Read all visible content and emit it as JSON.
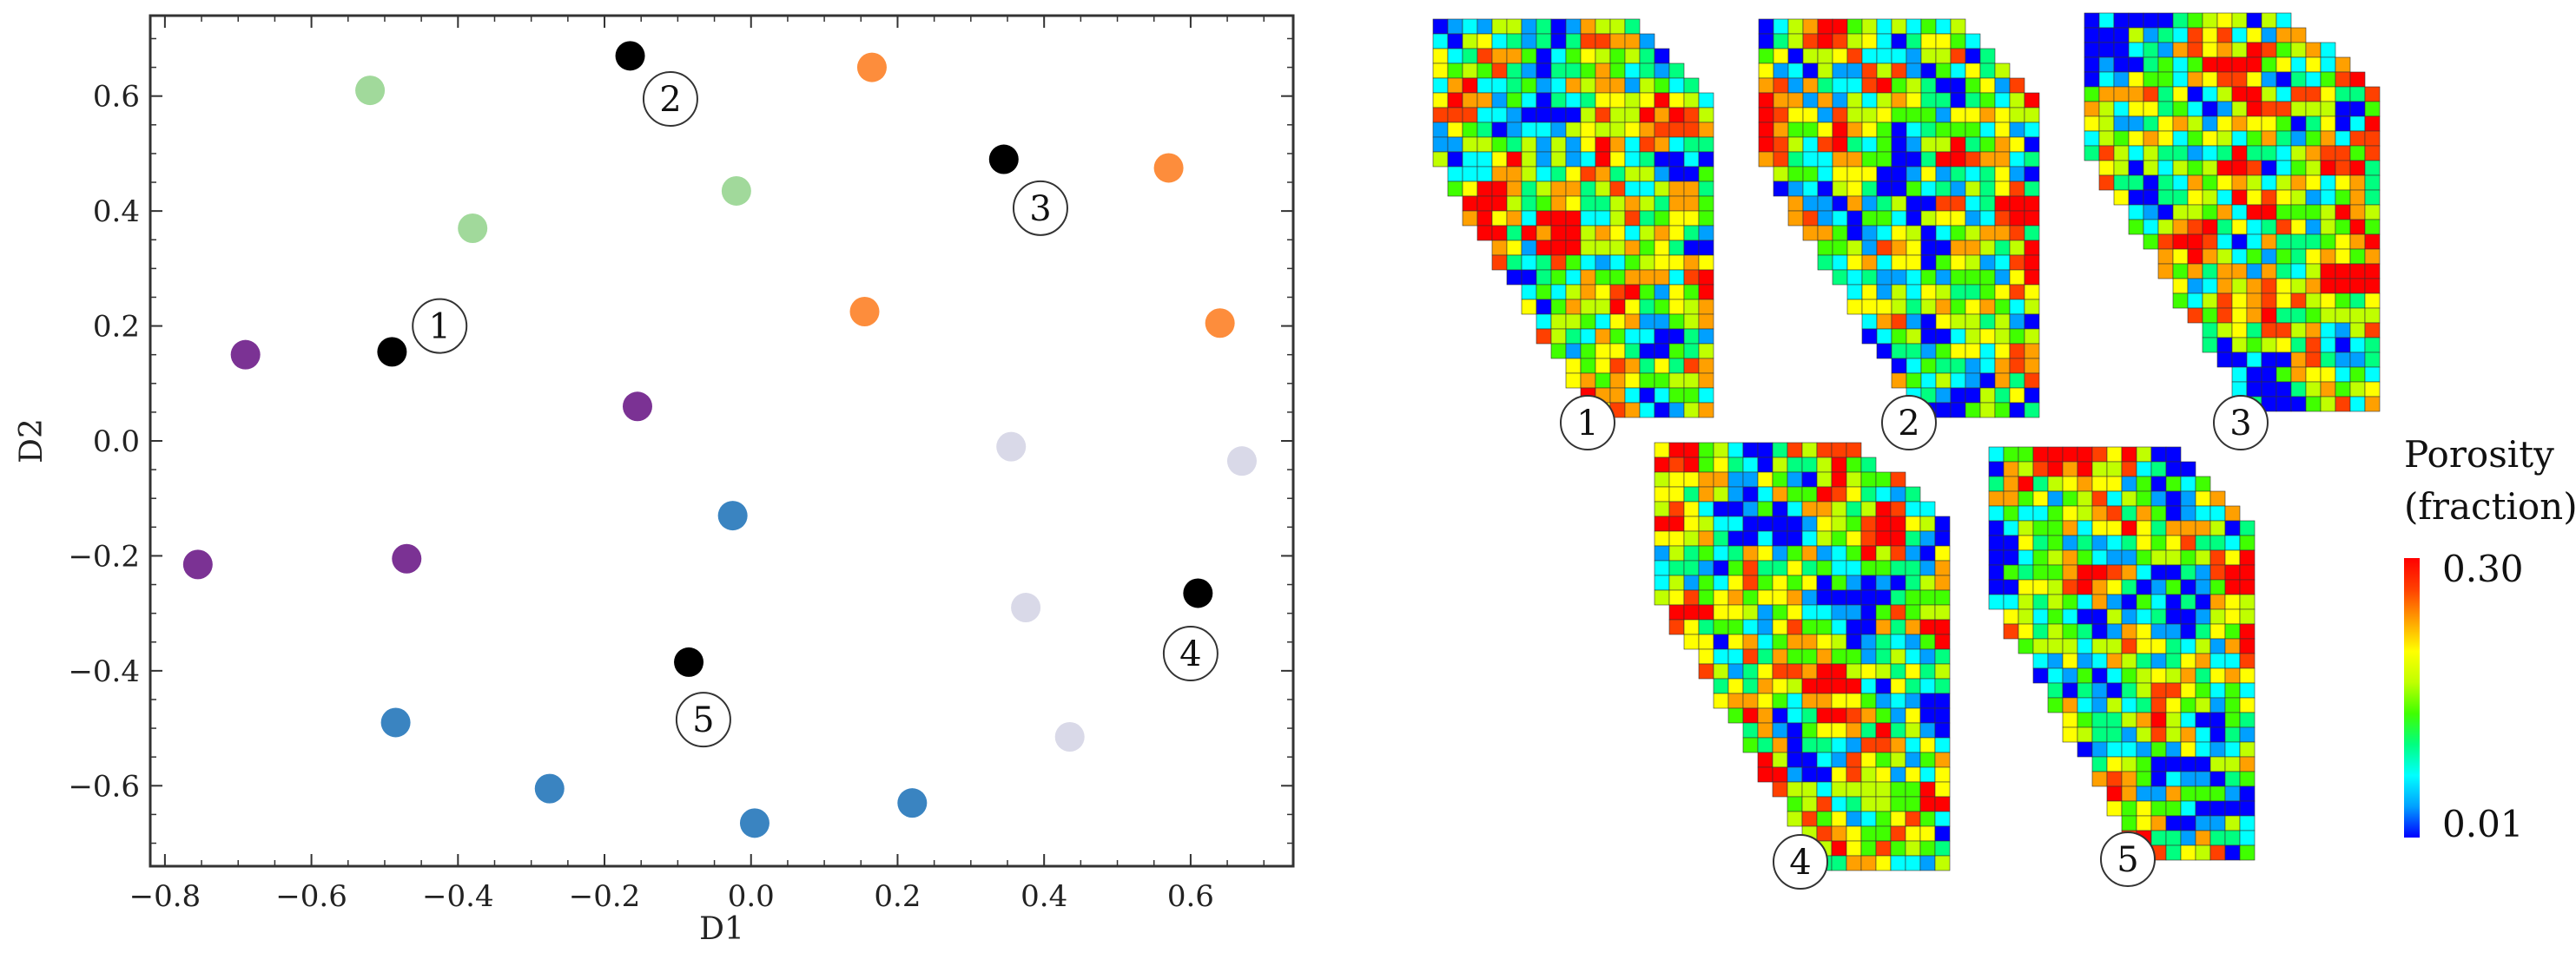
{
  "chart_data": [
    {
      "type": "scatter",
      "xlabel": "D1",
      "ylabel": "D2",
      "xlim": [
        -0.82,
        0.74
      ],
      "ylim": [
        -0.74,
        0.74
      ],
      "xticks": [
        "−0.8",
        "−0.6",
        "−0.4",
        "−0.2",
        "0.0",
        "0.2",
        "0.4",
        "0.6"
      ],
      "xtick_values": [
        -0.8,
        -0.6,
        -0.4,
        -0.2,
        0.0,
        0.2,
        0.4,
        0.6
      ],
      "yticks": [
        "−0.6",
        "−0.4",
        "−0.2",
        "0.0",
        "0.2",
        "0.4",
        "0.6"
      ],
      "ytick_values": [
        -0.6,
        -0.4,
        -0.2,
        0.0,
        0.2,
        0.4,
        0.6
      ],
      "grid": false,
      "series": [
        {
          "color": "#a1d99b",
          "points": [
            [
              -0.52,
              0.61
            ],
            [
              -0.38,
              0.37
            ],
            [
              -0.02,
              0.435
            ]
          ]
        },
        {
          "color": "#fd8d3c",
          "points": [
            [
              0.165,
              0.65
            ],
            [
              0.155,
              0.225
            ],
            [
              0.57,
              0.475
            ],
            [
              0.64,
              0.205
            ]
          ]
        },
        {
          "color": "#7b3294",
          "points": [
            [
              -0.69,
              0.15
            ],
            [
              -0.155,
              0.06
            ],
            [
              -0.755,
              -0.215
            ],
            [
              -0.47,
              -0.205
            ]
          ]
        },
        {
          "color": "#d9d9e8",
          "points": [
            [
              0.355,
              -0.01
            ],
            [
              0.67,
              -0.035
            ],
            [
              0.375,
              -0.29
            ],
            [
              0.435,
              -0.515
            ]
          ]
        },
        {
          "color": "#3a84c1",
          "points": [
            [
              -0.025,
              -0.13
            ],
            [
              -0.485,
              -0.49
            ],
            [
              -0.275,
              -0.605
            ],
            [
              0.005,
              -0.665
            ],
            [
              0.22,
              -0.63
            ]
          ]
        },
        {
          "color": "#000000",
          "points": [
            [
              -0.49,
              0.155
            ],
            [
              -0.165,
              0.67
            ],
            [
              0.345,
              0.49
            ],
            [
              0.61,
              -0.265
            ],
            [
              -0.085,
              -0.385
            ]
          ]
        }
      ],
      "annotations": [
        {
          "text": "1",
          "x": -0.425,
          "y": 0.2
        },
        {
          "text": "2",
          "x": -0.11,
          "y": 0.595
        },
        {
          "text": "3",
          "x": 0.395,
          "y": 0.405
        },
        {
          "text": "4",
          "x": 0.6,
          "y": -0.37
        },
        {
          "text": "5",
          "x": -0.065,
          "y": -0.485
        }
      ]
    },
    {
      "type": "heatmap",
      "maps": [
        {
          "label": "1",
          "seed": 11
        },
        {
          "label": "2",
          "seed": 23
        },
        {
          "label": "3",
          "seed": 37
        },
        {
          "label": "4",
          "seed": 41
        },
        {
          "label": "5",
          "seed": 59
        }
      ],
      "colorbar": {
        "title_line1": "Porosity",
        "title_line2": "(fraction)",
        "max_label": "0.30",
        "min_label": "0.01",
        "min": 0.01,
        "max": 0.3,
        "colors": [
          "#0000ff",
          "#00a0ff",
          "#00ffff",
          "#00ff80",
          "#40ff00",
          "#c0ff00",
          "#ffff00",
          "#ffa000",
          "#ff4000",
          "#ff0000"
        ]
      }
    }
  ]
}
